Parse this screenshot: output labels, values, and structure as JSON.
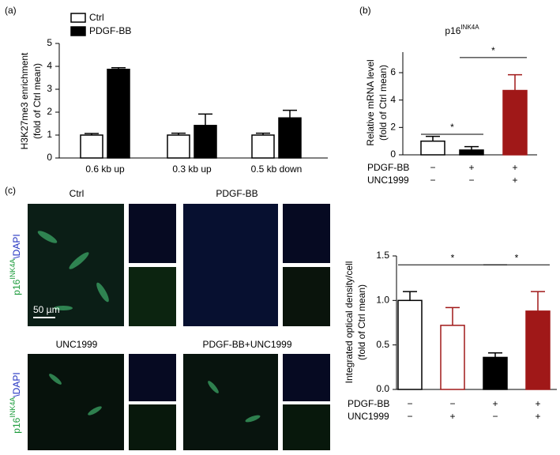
{
  "panel_labels": [
    "(a)",
    "(b)",
    "(c)"
  ],
  "images": {
    "labels": [
      "Ctrl",
      "PDGF-BB",
      "UNC1999",
      "PDGF-BB+UNC1999"
    ],
    "scale_bar": "50 µm",
    "stain": {
      "marker": "p16",
      "superscript": "INK4A",
      "counterstain": "\\DAPI"
    }
  },
  "chart_data": [
    {
      "type": "bar",
      "ylabel": [
        "H3K27me3 enrichment",
        "(fold of Ctrl mean)"
      ],
      "categories": [
        "0.6 kb up",
        "0.3 kb up",
        "0.5 kb down"
      ],
      "series": [
        {
          "name": "Ctrl",
          "color": "#ffffff",
          "values": [
            1.0,
            1.0,
            1.0
          ],
          "errors": [
            0.07,
            0.08,
            0.08
          ]
        },
        {
          "name": "PDGF-BB",
          "color": "#000000",
          "values": [
            3.87,
            1.42,
            1.75
          ],
          "errors": [
            0.07,
            0.5,
            0.33
          ]
        }
      ],
      "ylim": [
        0,
        5
      ],
      "yticks": [
        0,
        1,
        2,
        3,
        4,
        5
      ]
    },
    {
      "type": "bar",
      "title": "p16",
      "title_superscript": "INK4A",
      "ylabel": [
        "Relative mRNA level",
        "(fold of Ctrl mean)"
      ],
      "values": [
        1.0,
        0.35,
        4.7
      ],
      "errors": [
        0.35,
        0.25,
        1.15
      ],
      "colors": [
        "#ffffff",
        "#000000",
        "#a01818"
      ],
      "edge_colors": [
        "#000000",
        "#000000",
        "#a01818"
      ],
      "conditions": [
        {
          "name": "PDGF-BB",
          "marks": [
            "−",
            "+",
            "+"
          ]
        },
        {
          "name": "UNC1999",
          "marks": [
            "−",
            "−",
            "+"
          ]
        }
      ],
      "significance": [
        "*",
        "*"
      ],
      "ylim": [
        0,
        7.5
      ],
      "yticks": [
        0,
        2,
        4,
        6
      ]
    },
    {
      "type": "bar",
      "ylabel": [
        "Integrated optical density/cell",
        "(fold of Ctrl mean)"
      ],
      "values": [
        1.0,
        0.72,
        0.36,
        0.88
      ],
      "errors": [
        0.1,
        0.2,
        0.05,
        0.22
      ],
      "colors": [
        "#ffffff",
        "#ffffff",
        "#000000",
        "#a01818"
      ],
      "edge_colors": [
        "#000000",
        "#a01818",
        "#000000",
        "#a01818"
      ],
      "conditions": [
        {
          "name": "PDGF-BB",
          "marks": [
            "−",
            "−",
            "+",
            "+"
          ]
        },
        {
          "name": "UNC1999",
          "marks": [
            "−",
            "+",
            "−",
            "+"
          ]
        }
      ],
      "significance": [
        "*",
        "*"
      ],
      "ylim": [
        0,
        1.5
      ],
      "yticks": [
        {
          "value": 0,
          "label": "0.0"
        },
        0.5,
        {
          "value": 1,
          "label": "1.0"
        },
        1.5
      ]
    }
  ]
}
